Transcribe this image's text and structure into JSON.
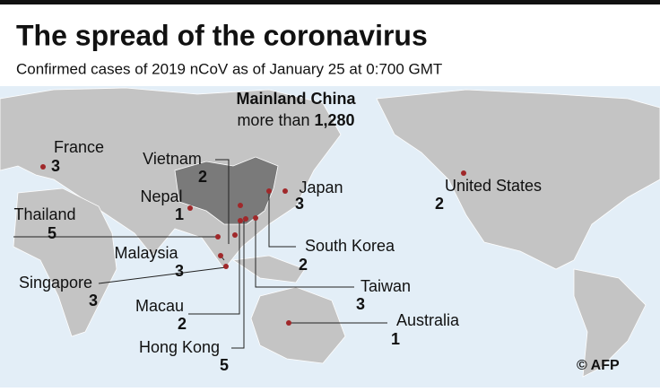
{
  "header": {
    "title": "The spread of the coronavirus",
    "subtitle": "Confirmed cases of 2019 nCoV as of January 25 at 0:700 GMT"
  },
  "locations": [
    {
      "name": "Mainland China",
      "prefix": "more than",
      "count": "1,280"
    },
    {
      "name": "Vietnam",
      "count": 2
    },
    {
      "name": "France",
      "count": 3
    },
    {
      "name": "Nepal",
      "count": 1
    },
    {
      "name": "Thailand",
      "count": 5
    },
    {
      "name": "Japan",
      "count": 3
    },
    {
      "name": "United States",
      "count": 2
    },
    {
      "name": "South Korea",
      "count": 2
    },
    {
      "name": "Malaysia",
      "count": 3
    },
    {
      "name": "Singapore",
      "count": 3
    },
    {
      "name": "Taiwan",
      "count": 3
    },
    {
      "name": "Macau",
      "count": 2
    },
    {
      "name": "Australia",
      "count": 1
    },
    {
      "name": "Hong Kong",
      "count": 5
    }
  ],
  "credit": "© AFP"
}
